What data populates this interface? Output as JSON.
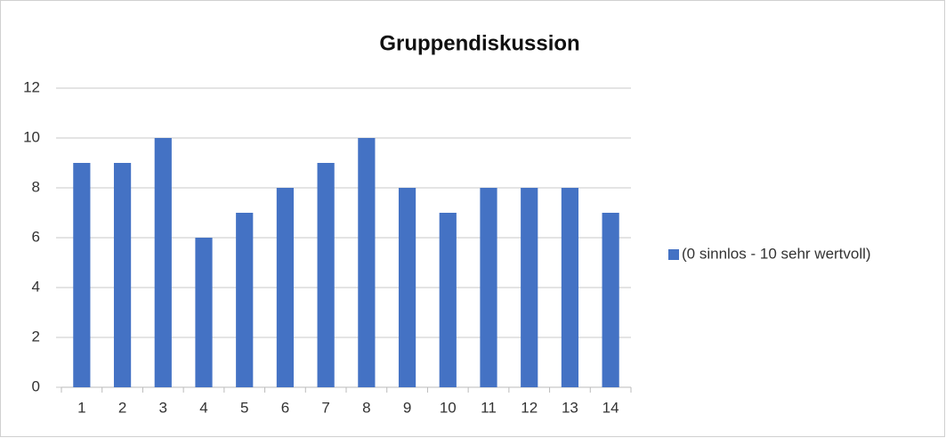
{
  "chart_data": {
    "type": "bar",
    "title": "Gruppendiskussion",
    "categories": [
      "1",
      "2",
      "3",
      "4",
      "5",
      "6",
      "7",
      "8",
      "9",
      "10",
      "11",
      "12",
      "13",
      "14"
    ],
    "series": [
      {
        "name": "(0 sinnlos - 10 sehr wertvoll)",
        "color": "#4472c4",
        "values": [
          9,
          9,
          10,
          6,
          7,
          8,
          9,
          10,
          8,
          7,
          8,
          8,
          8,
          7
        ]
      }
    ],
    "ylim": [
      0,
      12
    ],
    "yticks": [
      0,
      2,
      4,
      6,
      8,
      10,
      12
    ],
    "grid": true,
    "legend": "right"
  }
}
